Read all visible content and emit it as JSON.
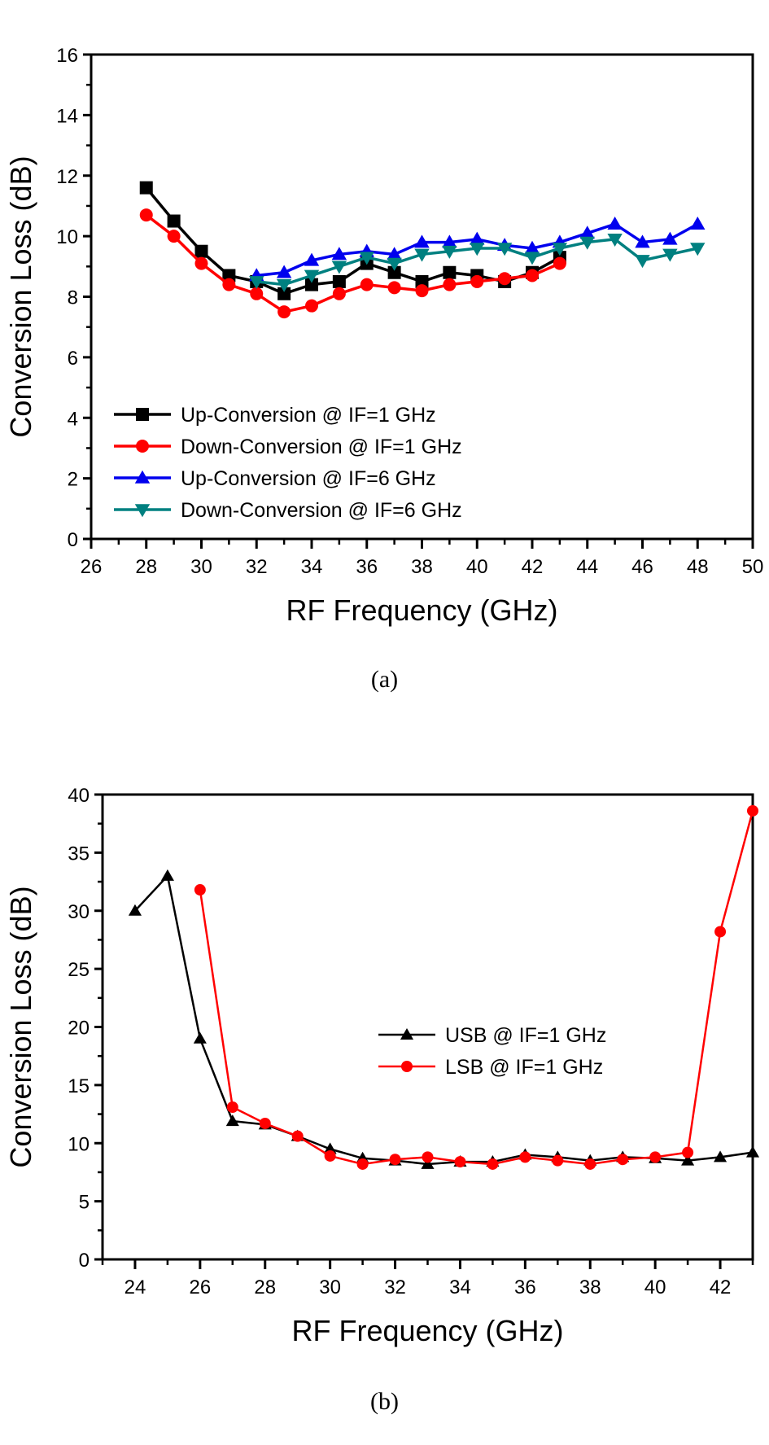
{
  "chart_data": [
    {
      "type": "line",
      "caption": "(a)",
      "title": "",
      "xlabel": "RF Frequency (GHz)",
      "ylabel": "Conversion Loss (dB)",
      "xlim": [
        26,
        50
      ],
      "ylim": [
        0,
        16
      ],
      "xticks": [
        "26",
        "28",
        "30",
        "32",
        "34",
        "36",
        "38",
        "40",
        "42",
        "44",
        "46",
        "48",
        "50"
      ],
      "yticks": [
        "0",
        "2",
        "4",
        "6",
        "8",
        "10",
        "12",
        "14",
        "16"
      ],
      "grid": false,
      "legend_position": "bottom-left",
      "series": [
        {
          "name": "Up-Conversion @ IF=1 GHz",
          "color": "#000000",
          "marker": "square",
          "x": [
            28,
            29,
            30,
            31,
            32,
            33,
            34,
            35,
            36,
            37,
            38,
            39,
            40,
            41,
            42,
            43
          ],
          "y": [
            11.6,
            10.5,
            9.5,
            8.7,
            8.5,
            8.1,
            8.4,
            8.5,
            9.1,
            8.8,
            8.5,
            8.8,
            8.7,
            8.5,
            8.8,
            9.3
          ]
        },
        {
          "name": "Down-Conversion @ IF=1 GHz",
          "color": "#ff0000",
          "marker": "circle",
          "x": [
            28,
            29,
            30,
            31,
            32,
            33,
            34,
            35,
            36,
            37,
            38,
            39,
            40,
            41,
            42,
            43
          ],
          "y": [
            10.7,
            10.0,
            9.1,
            8.4,
            8.1,
            7.5,
            7.7,
            8.1,
            8.4,
            8.3,
            8.2,
            8.4,
            8.5,
            8.6,
            8.7,
            9.1
          ]
        },
        {
          "name": "Up-Conversion @ IF=6 GHz",
          "color": "#0000ee",
          "marker": "triangle-up",
          "x": [
            32,
            33,
            34,
            35,
            36,
            37,
            38,
            39,
            40,
            41,
            42,
            43,
            44,
            45,
            46,
            47,
            48
          ],
          "y": [
            8.7,
            8.8,
            9.2,
            9.4,
            9.5,
            9.4,
            9.8,
            9.8,
            9.9,
            9.7,
            9.6,
            9.8,
            10.1,
            10.4,
            9.8,
            9.9,
            10.4
          ]
        },
        {
          "name": "Down-Conversion @ IF=6 GHz",
          "color": "#008080",
          "marker": "triangle-down",
          "x": [
            32,
            33,
            34,
            35,
            36,
            37,
            38,
            39,
            40,
            41,
            42,
            43,
            44,
            45,
            46,
            47,
            48
          ],
          "y": [
            8.5,
            8.4,
            8.7,
            9.0,
            9.3,
            9.1,
            9.4,
            9.5,
            9.6,
            9.6,
            9.3,
            9.6,
            9.8,
            9.9,
            9.2,
            9.4,
            9.6
          ]
        }
      ]
    },
    {
      "type": "line",
      "caption": "(b)",
      "title": "",
      "xlabel": "RF Frequency (GHz)",
      "ylabel": "Conversion Loss (dB)",
      "xlim": [
        23,
        43
      ],
      "ylim": [
        0,
        40
      ],
      "xticks": [
        "24",
        "26",
        "28",
        "30",
        "32",
        "34",
        "36",
        "38",
        "40",
        "42"
      ],
      "yticks": [
        "0",
        "5",
        "10",
        "15",
        "20",
        "25",
        "30",
        "35",
        "40"
      ],
      "grid": false,
      "legend_position": "center-right",
      "series": [
        {
          "name": "USB @ IF=1 GHz",
          "color": "#000000",
          "marker": "triangle-up",
          "x": [
            24,
            25,
            26,
            27,
            28,
            29,
            30,
            31,
            32,
            33,
            34,
            35,
            36,
            37,
            38,
            39,
            40,
            41,
            42,
            43
          ],
          "y": [
            30.0,
            33.0,
            19.0,
            11.9,
            11.6,
            10.6,
            9.5,
            8.7,
            8.5,
            8.2,
            8.4,
            8.4,
            9.0,
            8.8,
            8.5,
            8.8,
            8.7,
            8.5,
            8.8,
            9.2
          ]
        },
        {
          "name": "LSB @ IF=1 GHz",
          "color": "#ff0000",
          "marker": "circle",
          "x": [
            26,
            27,
            28,
            29,
            30,
            31,
            32,
            33,
            34,
            35,
            36,
            37,
            38,
            39,
            40,
            41,
            42,
            43
          ],
          "y": [
            31.8,
            13.1,
            11.7,
            10.6,
            8.9,
            8.2,
            8.6,
            8.8,
            8.4,
            8.2,
            8.8,
            8.5,
            8.2,
            8.6,
            8.8,
            9.2,
            28.2,
            38.6
          ]
        }
      ]
    }
  ]
}
